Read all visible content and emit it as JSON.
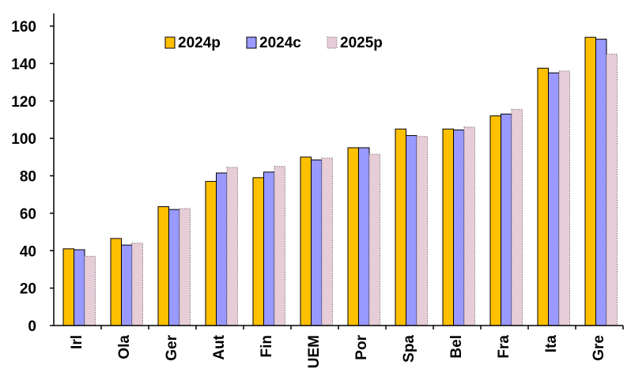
{
  "chart_data": {
    "type": "bar",
    "title": "",
    "xlabel": "",
    "ylabel": "",
    "ylim": [
      0,
      160
    ],
    "yticks": [
      0,
      20,
      40,
      60,
      80,
      100,
      120,
      140,
      160
    ],
    "grid": false,
    "legend_position": "top-left",
    "categories": [
      "Irl",
      "Ola",
      "Ger",
      "Aut",
      "Fin",
      "UEM",
      "Por",
      "Spa",
      "Bel",
      "Fra",
      "Ita",
      "Gre"
    ],
    "series": [
      {
        "name": "2024p",
        "color": "#FFC000",
        "pattern": "solid",
        "values": [
          41,
          46.5,
          63.5,
          77,
          79,
          90,
          95,
          105,
          105,
          112,
          137.5,
          154
        ]
      },
      {
        "name": "2024c",
        "color": "#9999FF",
        "pattern": "solid",
        "values": [
          40.5,
          43,
          62,
          81.5,
          82,
          88.5,
          95,
          101.5,
          104.5,
          113,
          135,
          153
        ]
      },
      {
        "name": "2025p",
        "color": "#E6CDD7",
        "pattern": "dotted",
        "values": [
          37,
          44,
          62.5,
          84.5,
          85,
          89.5,
          91.5,
          101,
          106,
          115.5,
          136,
          145
        ]
      }
    ]
  }
}
